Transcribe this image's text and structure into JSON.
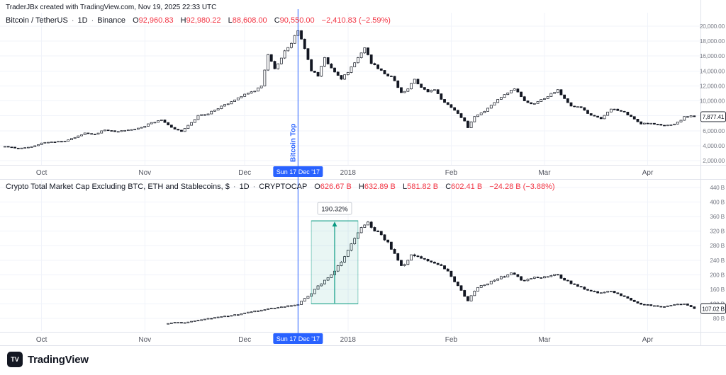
{
  "ui": {
    "dot": "·"
  },
  "header": {
    "attribution": "TraderJBx created with TradingView.com, Nov 19, 2025 22:33 UTC"
  },
  "panes": {
    "top": {
      "legend": {
        "title": "Bitcoin / TetherUS",
        "interval": "1D",
        "source": "Binance",
        "ohlc": [
          {
            "key": "O",
            "value": "92,960.83"
          },
          {
            "key": "H",
            "value": "92,980.22"
          },
          {
            "key": "L",
            "value": "88,608.00"
          },
          {
            "key": "C",
            "value": "90,550.00"
          }
        ],
        "change": "−2,410.83 (−2.59%)"
      },
      "last_price_label": "7,877.41"
    },
    "bottom": {
      "legend": {
        "title": "Crypto Total Market Cap Excluding BTC, ETH and Stablecoins, $",
        "interval": "1D",
        "source": "CRYPTOCAP",
        "ohlc": [
          {
            "key": "O",
            "value": "626.67 B"
          },
          {
            "key": "H",
            "value": "632.89 B"
          },
          {
            "key": "L",
            "value": "581.82 B"
          },
          {
            "key": "C",
            "value": "602.41 B"
          }
        ],
        "change": "−24.28 B (−3.88%)"
      },
      "last_price_label": "107.02 B"
    }
  },
  "annotations": {
    "vline": {
      "day": 88,
      "label": "Bitcoin Top",
      "date_label": "Sun 17 Dec '17"
    },
    "measure": {
      "from_day": 92,
      "to_day": 106,
      "from_value": 120,
      "to_value": 348.4,
      "label": "190.32%"
    }
  },
  "logo": {
    "mark": "TV",
    "brand": "TradingView"
  },
  "colors": {
    "up": "#ffffff",
    "down": "#131722",
    "outline": "#131722",
    "grid": "#f0f3fa",
    "border": "#e0e3eb",
    "axis_text": "#787b86",
    "time_text": "#50535e",
    "accent_blue": "#2962ff",
    "neg_red": "#f23645",
    "measure_green": "#089981",
    "measure_fill": "rgba(8,153,129,0.09)"
  },
  "chart_data": [
    {
      "type": "candlestick",
      "pane": "top",
      "title": "Bitcoin / TetherUS, 1D, Binance",
      "x_start_date": "2017-09-20",
      "x_unit": "days from 2017-09-20",
      "x_ticks": [
        {
          "day": 11,
          "label": "Oct"
        },
        {
          "day": 42,
          "label": "Nov"
        },
        {
          "day": 72,
          "label": "Dec"
        },
        {
          "day": 103,
          "label": "2018"
        },
        {
          "day": 134,
          "label": "Feb"
        },
        {
          "day": 162,
          "label": "Mar"
        },
        {
          "day": 193,
          "label": "Apr"
        }
      ],
      "y_ticks": [
        {
          "value": 2000,
          "label": "2,000.00"
        },
        {
          "value": 4000,
          "label": "4,000.00"
        },
        {
          "value": 6000,
          "label": "6,000.00"
        },
        {
          "value": 8000,
          "label": "8,000.00"
        },
        {
          "value": 10000,
          "label": "10,000.00"
        },
        {
          "value": 12000,
          "label": "12,000.00"
        },
        {
          "value": 14000,
          "label": "14,000.00"
        },
        {
          "value": 16000,
          "label": "16,000.00"
        },
        {
          "value": 18000,
          "label": "18,000.00"
        },
        {
          "value": 20000,
          "label": "20,000.00"
        }
      ],
      "ylim": [
        1300,
        21800
      ],
      "grid": true,
      "legend_position": "top-left",
      "close_anchors": [
        [
          0,
          3900
        ],
        [
          4,
          3650
        ],
        [
          8,
          3850
        ],
        [
          11,
          4350
        ],
        [
          15,
          4500
        ],
        [
          18,
          4600
        ],
        [
          21,
          5100
        ],
        [
          24,
          5700
        ],
        [
          27,
          5550
        ],
        [
          30,
          6100
        ],
        [
          34,
          5900
        ],
        [
          38,
          6150
        ],
        [
          41,
          6450
        ],
        [
          44,
          7100
        ],
        [
          47,
          7450
        ],
        [
          50,
          6450
        ],
        [
          53,
          5900
        ],
        [
          56,
          7100
        ],
        [
          58,
          8050
        ],
        [
          61,
          8250
        ],
        [
          65,
          9300
        ],
        [
          68,
          9900
        ],
        [
          72,
          10900
        ],
        [
          75,
          11300
        ],
        [
          77,
          12000
        ],
        [
          79,
          16200
        ],
        [
          81,
          14300
        ],
        [
          84,
          16700
        ],
        [
          86,
          17700
        ],
        [
          88,
          19400
        ],
        [
          90,
          17000
        ],
        [
          92,
          14000
        ],
        [
          94,
          13300
        ],
        [
          96,
          15800
        ],
        [
          98,
          14400
        ],
        [
          101,
          12900
        ],
        [
          103,
          13800
        ],
        [
          105,
          15100
        ],
        [
          108,
          17100
        ],
        [
          110,
          15000
        ],
        [
          112,
          14300
        ],
        [
          114,
          13600
        ],
        [
          116,
          13300
        ],
        [
          119,
          11100
        ],
        [
          121,
          11600
        ],
        [
          123,
          12900
        ],
        [
          125,
          11800
        ],
        [
          127,
          11200
        ],
        [
          129,
          11500
        ],
        [
          131,
          10200
        ],
        [
          134,
          9100
        ],
        [
          136,
          8300
        ],
        [
          138,
          7300
        ],
        [
          139,
          6400
        ],
        [
          141,
          7900
        ],
        [
          144,
          8600
        ],
        [
          148,
          10200
        ],
        [
          153,
          11600
        ],
        [
          156,
          10000
        ],
        [
          158,
          9600
        ],
        [
          160,
          9900
        ],
        [
          162,
          10300
        ],
        [
          164,
          11000
        ],
        [
          166,
          11500
        ],
        [
          168,
          10300
        ],
        [
          170,
          9300
        ],
        [
          173,
          9100
        ],
        [
          175,
          8300
        ],
        [
          179,
          7600
        ],
        [
          182,
          8900
        ],
        [
          184,
          8700
        ],
        [
          186,
          8500
        ],
        [
          188,
          7900
        ],
        [
          191,
          6900
        ],
        [
          194,
          7000
        ],
        [
          198,
          6700
        ],
        [
          201,
          6900
        ],
        [
          203,
          7400
        ],
        [
          204,
          7900
        ],
        [
          206,
          8000
        ],
        [
          207,
          7877
        ]
      ],
      "last_price": 7877.41
    },
    {
      "type": "candlestick",
      "pane": "bottom",
      "title": "Crypto Total Market Cap Excluding BTC, ETH and Stablecoins, $, 1D, CRYPTOCAP",
      "unit": "B",
      "x_start_date": "2017-09-20",
      "x_unit": "days from 2017-09-20",
      "x_ticks": [
        {
          "day": 11,
          "label": "Oct"
        },
        {
          "day": 42,
          "label": "Nov"
        },
        {
          "day": 72,
          "label": "Dec"
        },
        {
          "day": 103,
          "label": "2018"
        },
        {
          "day": 134,
          "label": "Feb"
        },
        {
          "day": 162,
          "label": "Mar"
        },
        {
          "day": 193,
          "label": "Apr"
        }
      ],
      "y_ticks": [
        {
          "value": 80,
          "label": "80 B"
        },
        {
          "value": 120,
          "label": "120 B"
        },
        {
          "value": 160,
          "label": "160 B"
        },
        {
          "value": 200,
          "label": "200 B"
        },
        {
          "value": 240,
          "label": "240 B"
        },
        {
          "value": 280,
          "label": "280 B"
        },
        {
          "value": 320,
          "label": "320 B"
        },
        {
          "value": 360,
          "label": "360 B"
        },
        {
          "value": 400,
          "label": "400 B"
        },
        {
          "value": 440,
          "label": "440 B"
        }
      ],
      "ylim": [
        55,
        460
      ],
      "grid": true,
      "legend_position": "top-left",
      "close_anchors": [
        [
          49,
          66
        ],
        [
          51,
          69
        ],
        [
          53,
          68
        ],
        [
          56,
          72
        ],
        [
          58,
          75
        ],
        [
          60,
          78
        ],
        [
          62,
          80
        ],
        [
          65,
          85
        ],
        [
          68,
          88
        ],
        [
          70,
          90
        ],
        [
          72,
          95
        ],
        [
          74,
          98
        ],
        [
          76,
          100
        ],
        [
          78,
          104
        ],
        [
          80,
          108
        ],
        [
          82,
          110
        ],
        [
          84,
          112
        ],
        [
          86,
          115
        ],
        [
          88,
          118
        ],
        [
          90,
          135
        ],
        [
          92,
          148
        ],
        [
          93,
          160
        ],
        [
          95,
          175
        ],
        [
          96,
          185
        ],
        [
          98,
          200
        ],
        [
          99,
          210
        ],
        [
          101,
          235
        ],
        [
          102,
          250
        ],
        [
          104,
          285
        ],
        [
          105,
          300
        ],
        [
          107,
          330
        ],
        [
          109,
          345
        ],
        [
          111,
          320
        ],
        [
          113,
          310
        ],
        [
          115,
          290
        ],
        [
          116,
          270
        ],
        [
          118,
          240
        ],
        [
          119,
          225
        ],
        [
          121,
          240
        ],
        [
          122,
          255
        ],
        [
          124,
          250
        ],
        [
          125,
          245
        ],
        [
          127,
          238
        ],
        [
          128,
          235
        ],
        [
          130,
          228
        ],
        [
          131,
          225
        ],
        [
          133,
          210
        ],
        [
          134,
          195
        ],
        [
          136,
          170
        ],
        [
          139,
          128
        ],
        [
          141,
          155
        ],
        [
          142,
          165
        ],
        [
          144,
          172
        ],
        [
          145,
          175
        ],
        [
          147,
          185
        ],
        [
          149,
          195
        ],
        [
          151,
          200
        ],
        [
          152,
          205
        ],
        [
          154,
          195
        ],
        [
          155,
          185
        ],
        [
          157,
          188
        ],
        [
          158,
          190
        ],
        [
          160,
          192
        ],
        [
          162,
          195
        ],
        [
          164,
          198
        ],
        [
          166,
          200
        ],
        [
          168,
          185
        ],
        [
          170,
          175
        ],
        [
          172,
          168
        ],
        [
          174,
          160
        ],
        [
          176,
          155
        ],
        [
          178,
          150
        ],
        [
          180,
          152
        ],
        [
          182,
          155
        ],
        [
          184,
          148
        ],
        [
          186,
          140
        ],
        [
          188,
          130
        ],
        [
          190,
          122
        ],
        [
          192,
          118
        ],
        [
          194,
          115
        ],
        [
          196,
          113
        ],
        [
          198,
          112
        ],
        [
          200,
          116
        ],
        [
          201,
          118
        ],
        [
          203,
          118
        ],
        [
          204,
          120
        ],
        [
          206,
          112
        ],
        [
          207,
          107
        ]
      ],
      "last_price": 107.02
    }
  ]
}
